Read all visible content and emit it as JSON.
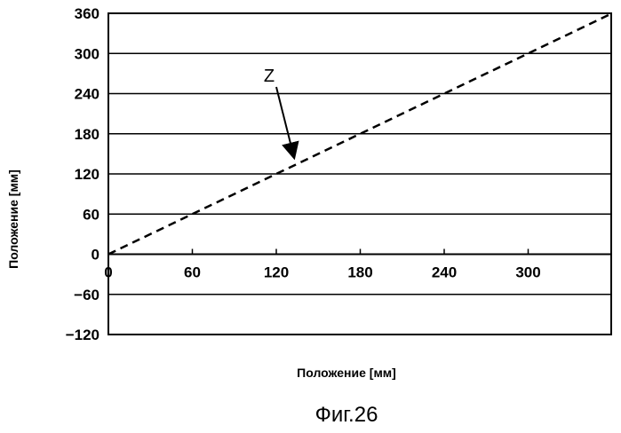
{
  "chart_data": {
    "type": "line",
    "title": "",
    "xlabel": "Положение [мм]",
    "ylabel": "Положение [мм]",
    "xlim": [
      0,
      360
    ],
    "ylim": [
      -120,
      360
    ],
    "x_ticks": [
      0,
      60,
      120,
      180,
      240,
      300
    ],
    "x_tick_labels": [
      "0",
      "60",
      "120",
      "180",
      "240",
      "300"
    ],
    "y_ticks": [
      -120,
      -60,
      0,
      60,
      120,
      180,
      240,
      300,
      360
    ],
    "y_tick_labels": [
      "−120",
      "−60",
      "0",
      "60",
      "120",
      "180",
      "240",
      "300",
      "360"
    ],
    "grid": "horizontal",
    "series": [
      {
        "name": "Z",
        "line_style": "dashed",
        "color": "#000000",
        "x": [
          0,
          360
        ],
        "y": [
          0,
          360
        ]
      }
    ],
    "annotations": [
      {
        "text": "Z",
        "arrow_to": [
          130,
          130
        ]
      }
    ]
  },
  "figure_caption": "Фиг.26"
}
